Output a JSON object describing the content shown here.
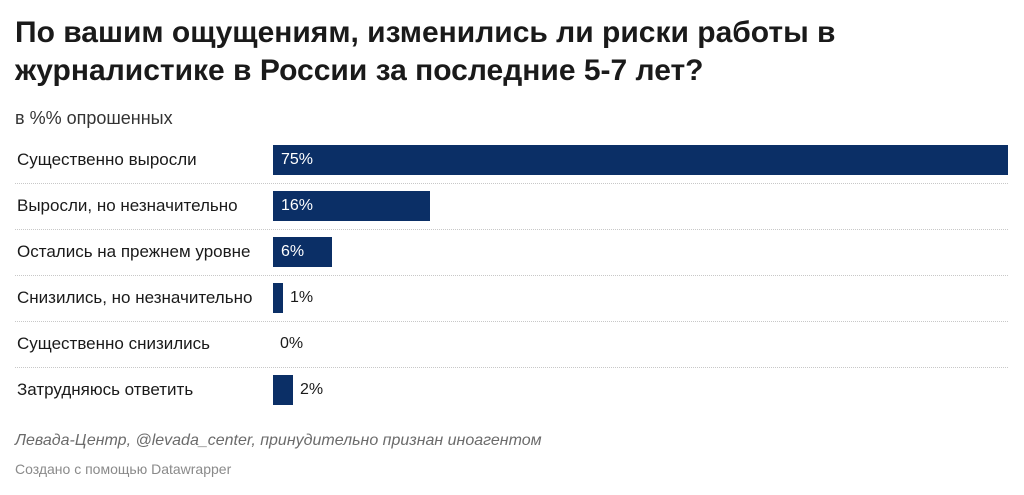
{
  "header": {
    "title": "По вашим ощущениям, изменились ли риски работы в журналистике в России за последние 5-7 лет?",
    "subtitle": "в %% опрошенных"
  },
  "footer": {
    "source": "Левада-Центр, @levada_center, принудительно признан иноагентом",
    "credit": "Создано с помощью Datawrapper"
  },
  "colors": {
    "bar": "#0b2f66"
  },
  "chart_data": {
    "type": "bar",
    "orientation": "horizontal",
    "title": "По вашим ощущениям, изменились ли риски работы в журналистике в России за последние 5-7 лет?",
    "subtitle": "в %% опрошенных",
    "categories": [
      "Существенно выросли",
      "Выросли, но незначительно",
      "Остались на прежнем уровне",
      "Снизились, но незначительно",
      "Существенно снизились",
      "Затрудняюсь ответить"
    ],
    "values": [
      75,
      16,
      6,
      1,
      0,
      2
    ],
    "value_labels": [
      "75%",
      "16%",
      "6%",
      "1%",
      "0%",
      "2%"
    ],
    "xlim": [
      0,
      75
    ],
    "grid": false,
    "legend": "none"
  }
}
